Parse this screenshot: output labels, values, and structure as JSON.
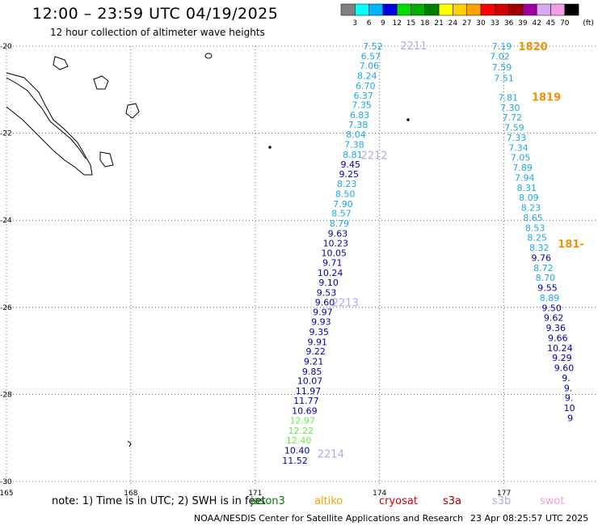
{
  "header": {
    "title": "12:00 – 23:59 UTC 04/19/2025",
    "subtitle": "12 hour collection of altimeter wave heights"
  },
  "legend": {
    "unit": "(ft)",
    "bins": [
      {
        "label": "3",
        "color": "#808080"
      },
      {
        "label": "6",
        "color": "#00ffff"
      },
      {
        "label": "9",
        "color": "#00b4ff"
      },
      {
        "label": "12",
        "color": "#0000e0"
      },
      {
        "label": "15",
        "color": "#00e000"
      },
      {
        "label": "18",
        "color": "#00b000"
      },
      {
        "label": "21",
        "color": "#008000"
      },
      {
        "label": "24",
        "color": "#ffff00"
      },
      {
        "label": "27",
        "color": "#ffd000"
      },
      {
        "label": "30",
        "color": "#ffa000"
      },
      {
        "label": "33",
        "color": "#ff0000"
      },
      {
        "label": "36",
        "color": "#d00000"
      },
      {
        "label": "39",
        "color": "#a00000"
      },
      {
        "label": "42",
        "color": "#a000a0"
      },
      {
        "label": "45",
        "color": "#d8a8f0"
      },
      {
        "label": "70",
        "color": "#f0a0e0"
      },
      {
        "label": "",
        "color": "#000000"
      }
    ]
  },
  "axes": {
    "lat_labels": [
      "-20",
      "-22",
      "-24",
      "-26",
      "-28",
      "-30"
    ],
    "lon_labels": [
      "165",
      "168",
      "171",
      "174",
      "177"
    ],
    "lat_range": [
      -30,
      -20
    ],
    "lon_range": [
      165,
      179.2
    ]
  },
  "colors": {
    "light_blue": "#1aa8e0",
    "dark_blue": "#0000b0",
    "green": "#66ee44",
    "orange": "#f0900a",
    "lavender": "#b0a8f0",
    "grid": "#555555"
  },
  "tracks": [
    {
      "id": "2211-2214",
      "points": [
        {
          "lat": -20.0,
          "lon": 173.84,
          "v": "7.52",
          "c": "light_blue"
        },
        {
          "lat": -20.23,
          "lon": 173.79,
          "v": "6.57",
          "c": "light_blue"
        },
        {
          "lat": -20.45,
          "lon": 173.75,
          "v": "7.06",
          "c": "light_blue"
        },
        {
          "lat": -20.68,
          "lon": 173.7,
          "v": "8.24",
          "c": "light_blue"
        },
        {
          "lat": -20.91,
          "lon": 173.66,
          "v": "6.70",
          "c": "light_blue"
        },
        {
          "lat": -21.13,
          "lon": 173.61,
          "v": "6.37",
          "c": "light_blue"
        },
        {
          "lat": -21.35,
          "lon": 173.57,
          "v": "7.35",
          "c": "light_blue"
        },
        {
          "lat": -21.58,
          "lon": 173.52,
          "v": "6.83",
          "c": "light_blue"
        },
        {
          "lat": -21.8,
          "lon": 173.48,
          "v": "7.38",
          "c": "light_blue"
        },
        {
          "lat": -22.03,
          "lon": 173.43,
          "v": "8.04",
          "c": "light_blue"
        },
        {
          "lat": -22.26,
          "lon": 173.39,
          "v": "7.38",
          "c": "light_blue"
        },
        {
          "lat": -22.49,
          "lon": 173.35,
          "v": "8.81",
          "c": "light_blue"
        },
        {
          "lat": -22.71,
          "lon": 173.3,
          "v": "9.45",
          "c": "dark_blue"
        },
        {
          "lat": -22.94,
          "lon": 173.26,
          "v": "9.25",
          "c": "dark_blue"
        },
        {
          "lat": -23.16,
          "lon": 173.21,
          "v": "8.23",
          "c": "light_blue"
        },
        {
          "lat": -23.39,
          "lon": 173.17,
          "v": "8.50",
          "c": "light_blue"
        },
        {
          "lat": -23.62,
          "lon": 173.12,
          "v": "7.90",
          "c": "light_blue"
        },
        {
          "lat": -23.84,
          "lon": 173.08,
          "v": "8.57",
          "c": "light_blue"
        },
        {
          "lat": -24.07,
          "lon": 173.03,
          "v": "8.79",
          "c": "light_blue"
        },
        {
          "lat": -24.3,
          "lon": 172.99,
          "v": "9.63",
          "c": "dark_blue"
        },
        {
          "lat": -24.53,
          "lon": 172.94,
          "v": "10.23",
          "c": "dark_blue"
        },
        {
          "lat": -24.75,
          "lon": 172.9,
          "v": "10.05",
          "c": "dark_blue"
        },
        {
          "lat": -24.97,
          "lon": 172.86,
          "v": "9.71",
          "c": "dark_blue"
        },
        {
          "lat": -25.2,
          "lon": 172.81,
          "v": "10.24",
          "c": "dark_blue"
        },
        {
          "lat": -25.43,
          "lon": 172.77,
          "v": "9.10",
          "c": "dark_blue"
        },
        {
          "lat": -25.66,
          "lon": 172.72,
          "v": "9.53",
          "c": "dark_blue"
        },
        {
          "lat": -25.88,
          "lon": 172.68,
          "v": "9.60",
          "c": "dark_blue"
        },
        {
          "lat": -26.11,
          "lon": 172.63,
          "v": "9.97",
          "c": "dark_blue"
        },
        {
          "lat": -26.33,
          "lon": 172.59,
          "v": "9.93",
          "c": "dark_blue"
        },
        {
          "lat": -26.56,
          "lon": 172.54,
          "v": "9.35",
          "c": "dark_blue"
        },
        {
          "lat": -26.79,
          "lon": 172.5,
          "v": "9.91",
          "c": "dark_blue"
        },
        {
          "lat": -27.01,
          "lon": 172.46,
          "v": "9.22",
          "c": "dark_blue"
        },
        {
          "lat": -27.24,
          "lon": 172.41,
          "v": "9.21",
          "c": "dark_blue"
        },
        {
          "lat": -27.47,
          "lon": 172.37,
          "v": "9.85",
          "c": "dark_blue"
        },
        {
          "lat": -27.69,
          "lon": 172.32,
          "v": "10.07",
          "c": "dark_blue"
        },
        {
          "lat": -27.92,
          "lon": 172.28,
          "v": "11.97",
          "c": "dark_blue"
        },
        {
          "lat": -28.14,
          "lon": 172.23,
          "v": "11.77",
          "c": "dark_blue"
        },
        {
          "lat": -28.37,
          "lon": 172.19,
          "v": "10.69",
          "c": "dark_blue"
        },
        {
          "lat": -28.6,
          "lon": 172.14,
          "v": "12.97",
          "c": "green"
        },
        {
          "lat": -28.83,
          "lon": 172.1,
          "v": "12.22",
          "c": "green"
        },
        {
          "lat": -29.05,
          "lon": 172.05,
          "v": "12.40",
          "c": "green"
        },
        {
          "lat": -29.28,
          "lon": 172.01,
          "v": "10.40",
          "c": "dark_blue"
        },
        {
          "lat": -29.52,
          "lon": 171.96,
          "v": "11.52",
          "c": "dark_blue"
        }
      ]
    },
    {
      "id": "1820-1819",
      "points": [
        {
          "lat": -20.0,
          "lon": 176.95,
          "v": "7.19",
          "c": "light_blue"
        },
        {
          "lat": -20.23,
          "lon": 176.9,
          "v": "7.02",
          "c": "light_blue"
        },
        {
          "lat": -20.48,
          "lon": 176.95,
          "v": "7.59",
          "c": "light_blue"
        },
        {
          "lat": -20.73,
          "lon": 177.0,
          "v": "7.51",
          "c": "light_blue"
        },
        {
          "lat": -21.18,
          "lon": 177.1,
          "v": "7.81",
          "c": "light_blue"
        },
        {
          "lat": -21.41,
          "lon": 177.15,
          "v": "7.30",
          "c": "light_blue"
        },
        {
          "lat": -21.64,
          "lon": 177.2,
          "v": "7.72",
          "c": "light_blue"
        },
        {
          "lat": -21.87,
          "lon": 177.25,
          "v": "7.59",
          "c": "light_blue"
        },
        {
          "lat": -22.1,
          "lon": 177.3,
          "v": "7.33",
          "c": "light_blue"
        },
        {
          "lat": -22.33,
          "lon": 177.35,
          "v": "7.34",
          "c": "light_blue"
        },
        {
          "lat": -22.56,
          "lon": 177.4,
          "v": "7.05",
          "c": "light_blue"
        },
        {
          "lat": -22.79,
          "lon": 177.45,
          "v": "7.89",
          "c": "light_blue"
        },
        {
          "lat": -23.02,
          "lon": 177.5,
          "v": "7.94",
          "c": "light_blue"
        },
        {
          "lat": -23.25,
          "lon": 177.55,
          "v": "8.31",
          "c": "light_blue"
        },
        {
          "lat": -23.48,
          "lon": 177.6,
          "v": "8.09",
          "c": "light_blue"
        },
        {
          "lat": -23.71,
          "lon": 177.65,
          "v": "8.23",
          "c": "light_blue"
        },
        {
          "lat": -23.94,
          "lon": 177.7,
          "v": "8.65",
          "c": "light_blue"
        },
        {
          "lat": -24.17,
          "lon": 177.75,
          "v": "8.53",
          "c": "light_blue"
        },
        {
          "lat": -24.4,
          "lon": 177.8,
          "v": "8.25",
          "c": "light_blue"
        },
        {
          "lat": -24.63,
          "lon": 177.85,
          "v": "8.32",
          "c": "light_blue"
        },
        {
          "lat": -24.86,
          "lon": 177.9,
          "v": "9.76",
          "c": "dark_blue"
        },
        {
          "lat": -25.09,
          "lon": 177.95,
          "v": "8.72",
          "c": "light_blue"
        },
        {
          "lat": -25.32,
          "lon": 178.0,
          "v": "8.70",
          "c": "light_blue"
        },
        {
          "lat": -25.55,
          "lon": 178.05,
          "v": "9.55",
          "c": "dark_blue"
        },
        {
          "lat": -25.78,
          "lon": 178.1,
          "v": "8.89",
          "c": "light_blue"
        },
        {
          "lat": -26.01,
          "lon": 178.15,
          "v": "9.50",
          "c": "dark_blue"
        },
        {
          "lat": -26.24,
          "lon": 178.2,
          "v": "9.62",
          "c": "dark_blue"
        },
        {
          "lat": -26.47,
          "lon": 178.25,
          "v": "9.36",
          "c": "dark_blue"
        },
        {
          "lat": -26.7,
          "lon": 178.3,
          "v": "9.66",
          "c": "dark_blue"
        },
        {
          "lat": -26.93,
          "lon": 178.35,
          "v": "10.24",
          "c": "dark_blue"
        },
        {
          "lat": -27.16,
          "lon": 178.4,
          "v": "9.29",
          "c": "dark_blue"
        },
        {
          "lat": -27.39,
          "lon": 178.45,
          "v": "9.60",
          "c": "dark_blue"
        },
        {
          "lat": -27.62,
          "lon": 178.5,
          "v": "9.",
          "c": "dark_blue"
        },
        {
          "lat": -27.85,
          "lon": 178.55,
          "v": "9.",
          "c": "dark_blue"
        },
        {
          "lat": -28.08,
          "lon": 178.57,
          "v": "9.",
          "c": "dark_blue"
        },
        {
          "lat": -28.31,
          "lon": 178.58,
          "v": "10",
          "c": "dark_blue"
        },
        {
          "lat": -28.54,
          "lon": 178.6,
          "v": "9",
          "c": "dark_blue"
        }
      ]
    }
  ],
  "pass_labels": [
    {
      "text": "2211",
      "lat": -20.0,
      "lon": 174.5,
      "c": "lavender"
    },
    {
      "text": "2212",
      "lat": -22.52,
      "lon": 173.55,
      "c": "lavender"
    },
    {
      "text": "2213",
      "lat": -25.9,
      "lon": 172.85,
      "c": "lavender"
    },
    {
      "text": "2214",
      "lat": -29.38,
      "lon": 172.5,
      "c": "lavender"
    },
    {
      "text": "1820",
      "lat": -20.02,
      "lon": 177.35,
      "c": "orange"
    },
    {
      "text": "1819",
      "lat": -21.18,
      "lon": 177.67,
      "c": "orange"
    },
    {
      "text": "181-",
      "lat": -24.55,
      "lon": 178.3,
      "c": "orange"
    }
  ],
  "footer": {
    "note": "note:  1) Time is in UTC;  2) SWH is in feet",
    "satellites": [
      {
        "name": "jason3",
        "color": "#008000"
      },
      {
        "name": "altiko",
        "color": "#ffa000"
      },
      {
        "name": "cryosat",
        "color": "#d00000"
      },
      {
        "name": "s3a",
        "color": "#a00000"
      },
      {
        "name": "s3b",
        "color": "#b0a8f0"
      },
      {
        "name": "swot",
        "color": "#f0a0e0"
      }
    ],
    "credit": "NOAA/NESDIS Center for Satellite Applications and Research",
    "timestamp": "23 Apr 08:25:57 UTC 2025"
  }
}
